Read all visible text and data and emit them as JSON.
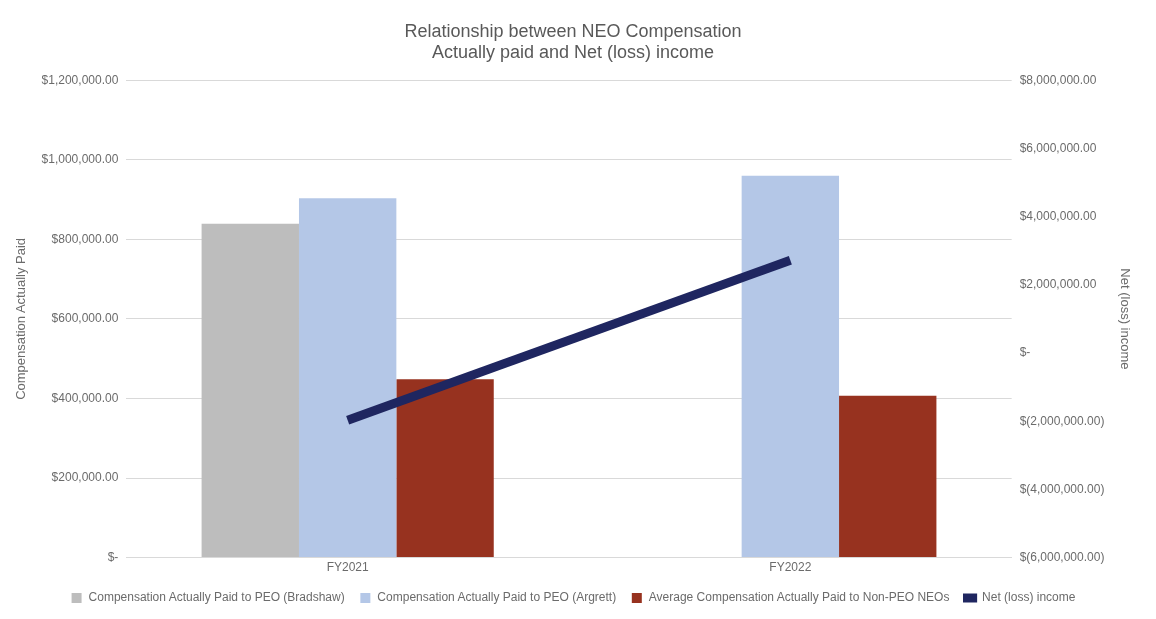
{
  "chart_data": {
    "type": "bar",
    "title": "Relationship between NEO Compensation\nActually paid and Net (loss) income",
    "categories": [
      "FY2021",
      "FY2022"
    ],
    "ylabel": "Compensation Actually Paid",
    "y2label": "Net (loss) income",
    "series": [
      {
        "name": "Compensation Actually Paid to PEO (Bradshaw)",
        "color": "#bdbdbd",
        "values": [
          839000,
          null
        ]
      },
      {
        "name": "Compensation Actually Paid to PEO (Argrett)",
        "color": "#b4c7e7",
        "values": [
          903000,
          960000
        ]
      },
      {
        "name": "Average Compensation Actually Paid to Non-PEO NEOs",
        "color": "#97321f",
        "values": [
          448000,
          407000
        ]
      },
      {
        "name": "Net (loss) income",
        "type": "line",
        "axis": "y2",
        "color": "#1f2660",
        "values": [
          -1970000,
          2720000
        ]
      }
    ],
    "ylim": [
      0,
      1200000
    ],
    "yticks": [
      {
        "value": 0,
        "label": "$-"
      },
      {
        "value": 200000,
        "label": "$200,000.00"
      },
      {
        "value": 400000,
        "label": "$400,000.00"
      },
      {
        "value": 600000,
        "label": "$600,000.00"
      },
      {
        "value": 800000,
        "label": "$800,000.00"
      },
      {
        "value": 1000000,
        "label": "$1,000,000.00"
      },
      {
        "value": 1200000,
        "label": "$1,200,000.00"
      }
    ],
    "y2lim": [
      -6000000,
      8000000
    ],
    "y2ticks": [
      {
        "value": -6000000,
        "label": "$(6,000,000.00)"
      },
      {
        "value": -4000000,
        "label": "$(4,000,000.00)"
      },
      {
        "value": -2000000,
        "label": "$(2,000,000.00)"
      },
      {
        "value": 0,
        "label": "$-"
      },
      {
        "value": 2000000,
        "label": "$2,000,000.00"
      },
      {
        "value": 4000000,
        "label": "$4,000,000.00"
      },
      {
        "value": 6000000,
        "label": "$6,000,000.00"
      },
      {
        "value": 8000000,
        "label": "$8,000,000.00"
      }
    ],
    "grid": "y",
    "legend": "bottom",
    "line_style": "solid",
    "marker": "none"
  }
}
